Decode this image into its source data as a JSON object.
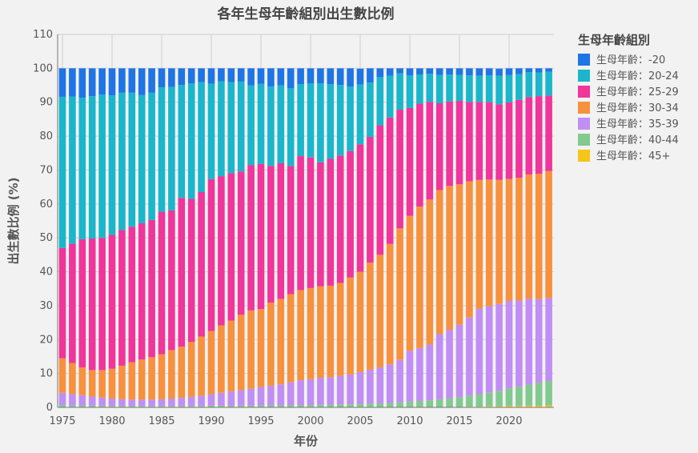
{
  "chart_data": {
    "type": "bar",
    "stacked": true,
    "title": "各年生母年齡組別出生數比例",
    "xlabel": "年份",
    "ylabel": "出生數比例 (%)",
    "ylim": [
      0,
      110
    ],
    "yticks": [
      0,
      10,
      20,
      30,
      40,
      50,
      60,
      70,
      80,
      90,
      100,
      110
    ],
    "xticks": [
      1975,
      1980,
      1985,
      1990,
      1995,
      2000,
      2005,
      2010,
      2015,
      2020
    ],
    "grid": true,
    "legend_title": "生母年齡組別",
    "legend_position": "right",
    "years": [
      1975,
      1976,
      1977,
      1978,
      1979,
      1980,
      1981,
      1982,
      1983,
      1984,
      1985,
      1986,
      1987,
      1988,
      1989,
      1990,
      1991,
      1992,
      1993,
      1994,
      1995,
      1996,
      1997,
      1998,
      1999,
      2000,
      2001,
      2002,
      2003,
      2004,
      2005,
      2006,
      2007,
      2008,
      2009,
      2010,
      2011,
      2012,
      2013,
      2014,
      2015,
      2016,
      2017,
      2018,
      2019,
      2020,
      2021,
      2022,
      2023,
      2024
    ],
    "series": [
      {
        "name": "生母年齡：45+",
        "color": "#f5c518",
        "values": [
          0.1,
          0.1,
          0.1,
          0.1,
          0.1,
          0.1,
          0.1,
          0.1,
          0.1,
          0.1,
          0.1,
          0.1,
          0.1,
          0.1,
          0.1,
          0.1,
          0.1,
          0.1,
          0.1,
          0.1,
          0.1,
          0.1,
          0.1,
          0.1,
          0.1,
          0.1,
          0.1,
          0.1,
          0.1,
          0.1,
          0.1,
          0.1,
          0.1,
          0.1,
          0.1,
          0.1,
          0.1,
          0.1,
          0.1,
          0.1,
          0.1,
          0.2,
          0.2,
          0.3,
          0.3,
          0.4,
          0.4,
          0.5,
          0.5,
          0.6
        ]
      },
      {
        "name": "生母年齡：40-44",
        "color": "#82c98f",
        "values": [
          0.6,
          0.5,
          0.5,
          0.4,
          0.4,
          0.3,
          0.3,
          0.3,
          0.3,
          0.3,
          0.3,
          0.3,
          0.3,
          0.3,
          0.3,
          0.4,
          0.4,
          0.4,
          0.4,
          0.4,
          0.5,
          0.5,
          0.5,
          0.5,
          0.6,
          0.6,
          0.7,
          0.7,
          0.8,
          0.8,
          0.9,
          1.0,
          1.1,
          1.2,
          1.4,
          1.6,
          1.8,
          2.0,
          2.3,
          2.6,
          2.9,
          3.3,
          3.7,
          4.1,
          4.6,
          5.2,
          5.7,
          6.2,
          6.8,
          7.2
        ]
      },
      {
        "name": "生母年齡：35-39",
        "color": "#c08ef5",
        "values": [
          3.6,
          3.3,
          3.0,
          2.7,
          2.4,
          2.2,
          2.0,
          1.9,
          1.9,
          1.9,
          2.0,
          2.2,
          2.4,
          2.7,
          3.0,
          3.4,
          3.8,
          4.2,
          4.6,
          5.0,
          5.4,
          5.8,
          6.2,
          6.8,
          7.3,
          7.6,
          7.9,
          8.1,
          8.4,
          8.8,
          9.4,
          10.0,
          10.6,
          11.4,
          12.5,
          15.0,
          15.6,
          16.4,
          19.2,
          20.2,
          21.4,
          23.0,
          25.2,
          25.5,
          25.6,
          25.8,
          25.4,
          25.3,
          24.6,
          24.5
        ]
      },
      {
        "name": "生母年齡：30-34",
        "color": "#f7913e",
        "values": [
          10.2,
          9.2,
          8.2,
          7.8,
          8.1,
          8.8,
          9.9,
          11.0,
          11.8,
          12.5,
          13.3,
          14.3,
          15.1,
          16.2,
          17.5,
          18.6,
          19.9,
          20.9,
          22.2,
          23.1,
          23.0,
          24.5,
          25.2,
          26.0,
          26.6,
          26.9,
          27.0,
          27.0,
          27.4,
          28.6,
          29.6,
          31.6,
          33.2,
          35.5,
          38.8,
          39.8,
          41.7,
          42.8,
          42.5,
          42.4,
          41.4,
          40.2,
          38.0,
          37.3,
          36.6,
          36.0,
          36.2,
          36.7,
          37.0,
          37.4
        ]
      },
      {
        "name": "生母年齡：25-29",
        "color": "#f0359b",
        "values": [
          32.5,
          35.2,
          37.8,
          38.8,
          39.0,
          39.5,
          40.0,
          40.0,
          40.2,
          40.5,
          42.0,
          41.2,
          43.9,
          42.2,
          42.6,
          44.8,
          44.0,
          43.5,
          42.3,
          42.9,
          42.8,
          40.3,
          40.0,
          37.8,
          39.5,
          38.5,
          36.6,
          37.4,
          37.6,
          37.3,
          37.6,
          37.1,
          38.2,
          37.3,
          35.0,
          31.8,
          30.4,
          28.8,
          25.6,
          24.9,
          24.6,
          23.4,
          23.0,
          22.8,
          22.3,
          22.6,
          23.0,
          22.8,
          22.9,
          22.3
        ]
      },
      {
        "name": "生母年齡：20-24",
        "color": "#1bb6cb",
        "values": [
          44.6,
          43.4,
          41.7,
          42.0,
          42.3,
          41.1,
          40.5,
          39.5,
          37.8,
          37.5,
          36.7,
          36.4,
          33.3,
          34.1,
          32.4,
          28.2,
          28.0,
          26.8,
          26.5,
          23.5,
          23.6,
          23.4,
          23.0,
          22.9,
          21.2,
          21.9,
          23.3,
          22.0,
          20.8,
          19.0,
          17.6,
          16.0,
          14.2,
          12.3,
          10.7,
          9.6,
          8.6,
          8.3,
          8.3,
          8.0,
          7.6,
          7.8,
          7.7,
          7.9,
          8.4,
          8.0,
          7.6,
          7.4,
          7.0,
          7.0
        ]
      },
      {
        "name": "生母年齡：-20",
        "color": "#1f74e6",
        "values": [
          8.4,
          8.3,
          8.7,
          8.2,
          7.7,
          8.0,
          7.2,
          7.2,
          7.9,
          7.2,
          5.6,
          5.5,
          4.9,
          4.4,
          4.1,
          4.5,
          3.8,
          4.1,
          3.9,
          5.0,
          4.6,
          5.4,
          5.0,
          5.9,
          4.7,
          4.4,
          4.4,
          4.7,
          4.9,
          5.4,
          4.7,
          4.2,
          2.6,
          2.2,
          1.5,
          2.1,
          1.8,
          1.6,
          2.0,
          1.8,
          2.0,
          2.1,
          2.2,
          2.1,
          2.1,
          2.0,
          1.7,
          1.1,
          1.2,
          1.0
        ]
      }
    ]
  }
}
